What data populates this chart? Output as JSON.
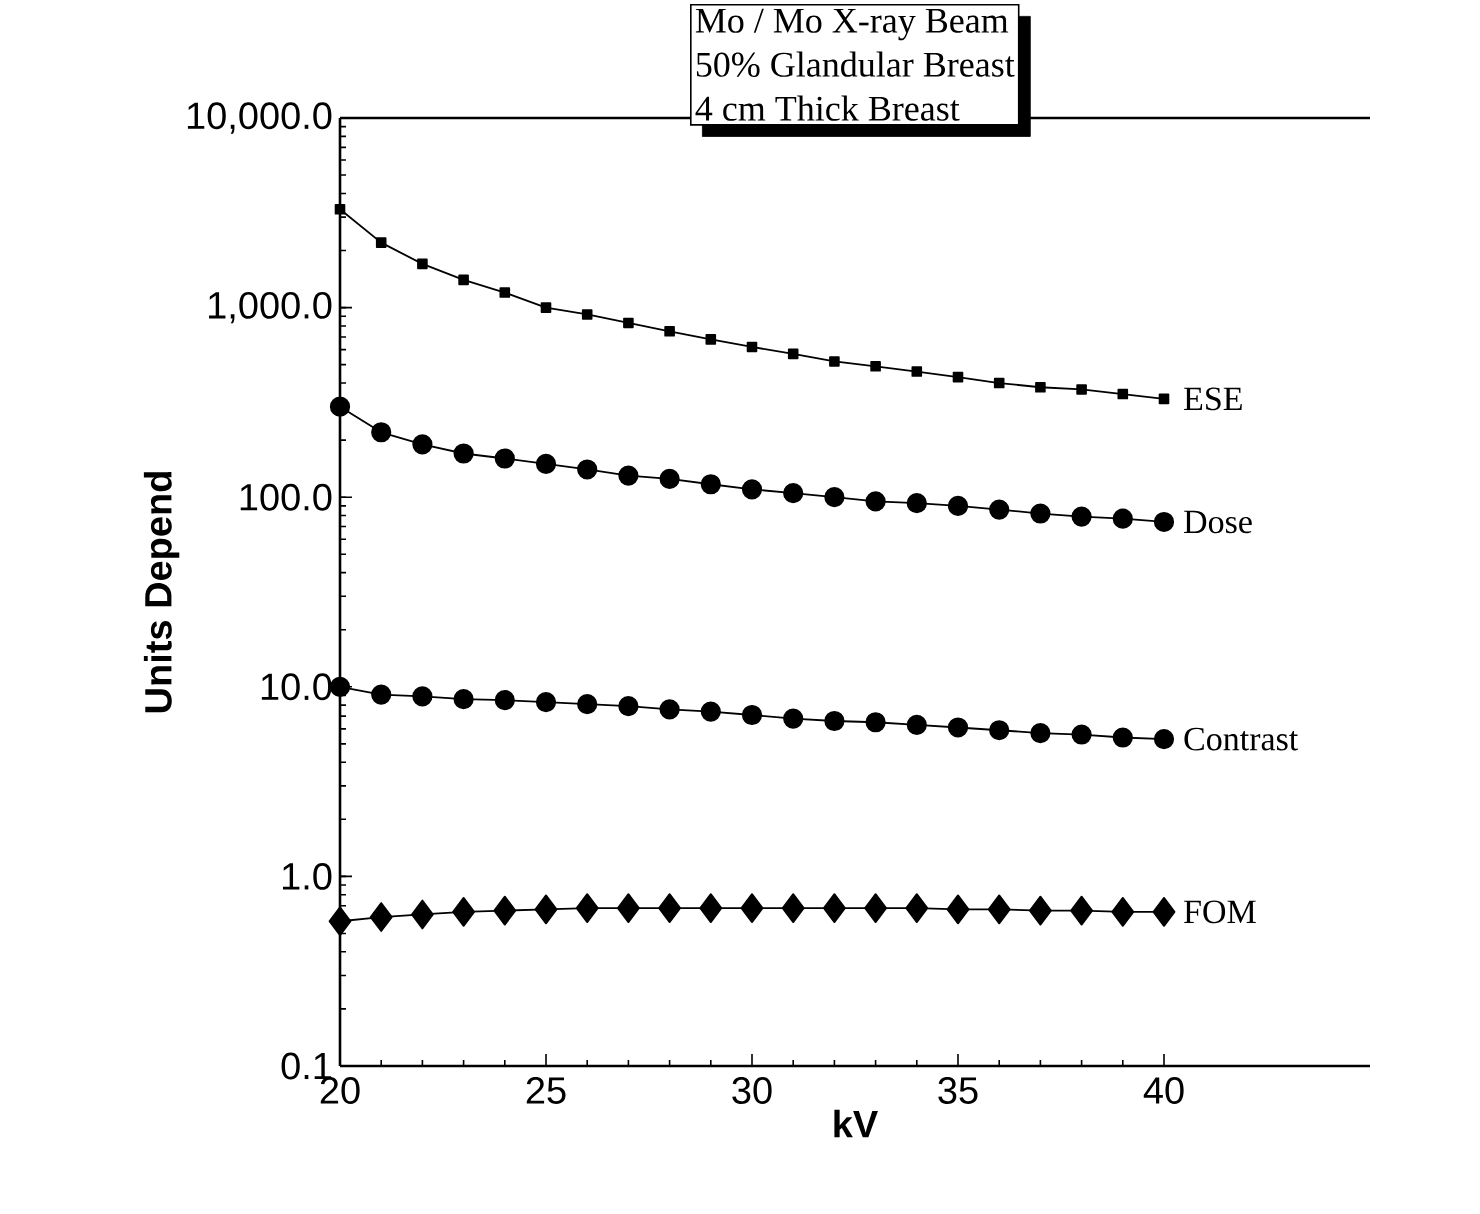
{
  "chart_data": {
    "type": "line",
    "xlabel": "kV",
    "ylabel": "Units Depend",
    "annotations": [
      "Mo / Mo X-ray Beam",
      "50% Glandular Breast",
      "4 cm Thick Breast"
    ],
    "x": [
      20,
      21,
      22,
      23,
      24,
      25,
      26,
      27,
      28,
      29,
      30,
      31,
      32,
      33,
      34,
      35,
      36,
      37,
      38,
      39,
      40
    ],
    "series": [
      {
        "name": "ESE",
        "color": "#000000",
        "marker": "square",
        "values": [
          3300,
          2200,
          1700,
          1400,
          1200,
          1000,
          920,
          830,
          750,
          680,
          620,
          570,
          520,
          490,
          460,
          430,
          400,
          380,
          370,
          350,
          330
        ]
      },
      {
        "name": "Dose",
        "color": "#000000",
        "marker": "circle",
        "values": [
          300,
          220,
          190,
          170,
          160,
          150,
          140,
          130,
          125,
          117,
          110,
          105,
          100,
          95,
          93,
          90,
          86,
          82,
          79,
          77,
          74
        ]
      },
      {
        "name": "Contrast",
        "color": "#000000",
        "marker": "circle",
        "values": [
          10,
          9.1,
          8.9,
          8.6,
          8.5,
          8.3,
          8.1,
          7.9,
          7.6,
          7.4,
          7.1,
          6.8,
          6.6,
          6.5,
          6.3,
          6.1,
          5.9,
          5.7,
          5.6,
          5.4,
          5.3
        ]
      },
      {
        "name": "FOM",
        "color": "#000000",
        "marker": "diamond",
        "values": [
          0.58,
          0.61,
          0.63,
          0.65,
          0.66,
          0.67,
          0.68,
          0.68,
          0.68,
          0.68,
          0.68,
          0.68,
          0.68,
          0.68,
          0.68,
          0.67,
          0.67,
          0.66,
          0.66,
          0.65,
          0.65
        ]
      }
    ],
    "log": "y",
    "xlim": [
      20,
      45
    ],
    "ylim": [
      0.1,
      10000
    ],
    "xticks": [
      20,
      25,
      30,
      35,
      40
    ],
    "yticks": [
      {
        "value": 0.1,
        "label": "0.1"
      },
      {
        "value": 1,
        "label": "1.0"
      },
      {
        "value": 10,
        "label": "10.0"
      },
      {
        "value": 100,
        "label": "100.0"
      },
      {
        "value": 1000,
        "label": "1,000.0"
      },
      {
        "value": 10000,
        "label": "10,000.0"
      }
    ],
    "grid": false,
    "line_style": "solid"
  }
}
